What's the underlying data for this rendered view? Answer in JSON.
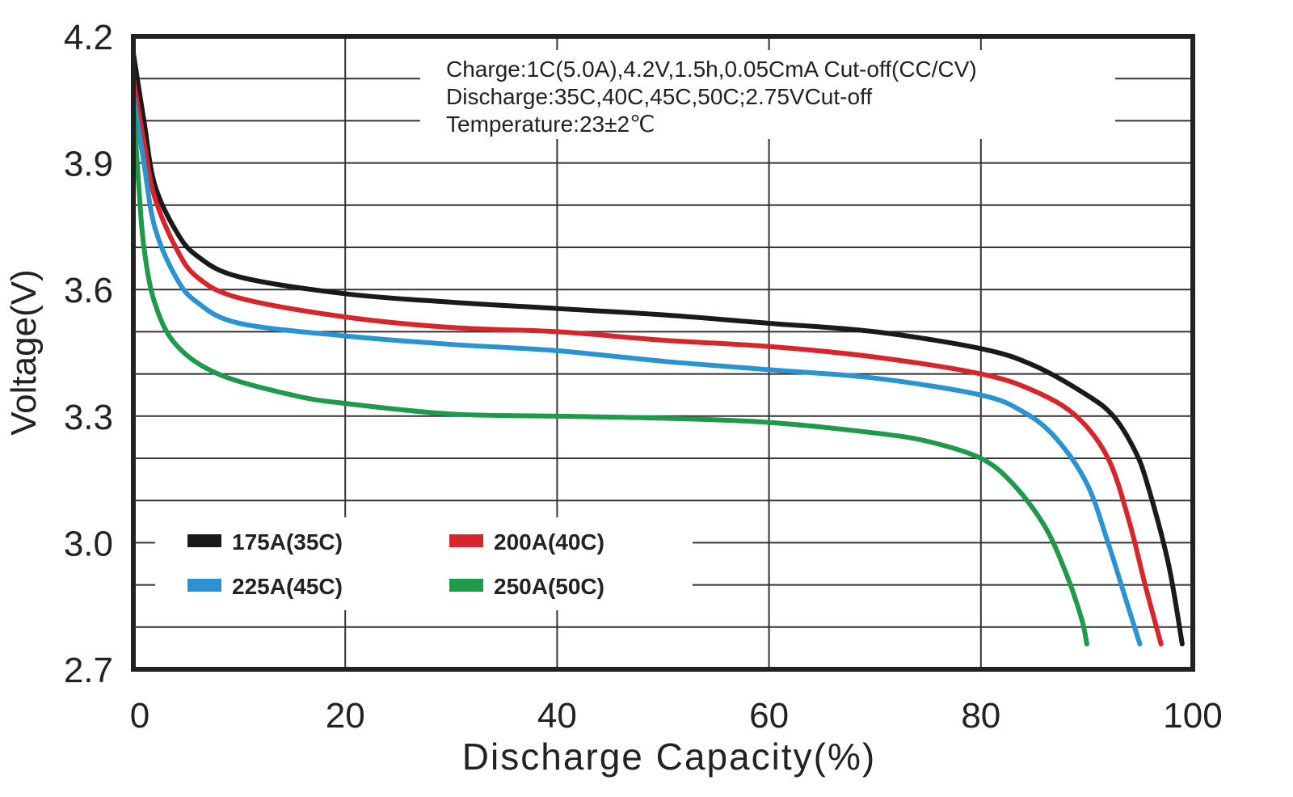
{
  "chart_data": {
    "type": "line",
    "title": "",
    "xlabel": "Discharge Capacity(%)",
    "ylabel": "Voltage(V)",
    "xlim": [
      0,
      100
    ],
    "ylim": [
      2.7,
      4.2
    ],
    "xticks": [
      "0",
      "20",
      "40",
      "60",
      "80",
      "100"
    ],
    "yticks": [
      "4.2",
      "3.9",
      "3.6",
      "3.3",
      "3.0",
      "2.7"
    ],
    "grid": true,
    "legend_placement": "bottom-left",
    "annotations": [
      "Charge:1C(5.0A),4.2V,1.5h,0.05CmA Cut-off(CC/CV)",
      "Discharge:35C,40C,45C,50C;2.75VCut-off",
      "Temperature:23±2℃"
    ],
    "series": [
      {
        "name": "175A(35C)",
        "color": "#1a1a1a",
        "x": [
          0,
          1,
          2,
          4,
          6,
          10,
          20,
          30,
          40,
          50,
          60,
          70,
          80,
          85,
          90,
          92.5,
          94.5,
          95.7,
          97.7,
          99
        ],
        "y": [
          4.16,
          4.0,
          3.85,
          3.74,
          3.68,
          3.63,
          3.59,
          3.57,
          3.555,
          3.54,
          3.52,
          3.5,
          3.46,
          3.42,
          3.35,
          3.3,
          3.22,
          3.14,
          2.95,
          2.76
        ]
      },
      {
        "name": "200A(40C)",
        "color": "#d7262b",
        "x": [
          0,
          1,
          2,
          4,
          6,
          10,
          20,
          30,
          40,
          50,
          60,
          70,
          80,
          85,
          89,
          92,
          94,
          95.5,
          97
        ],
        "y": [
          4.1,
          3.95,
          3.82,
          3.7,
          3.63,
          3.58,
          3.535,
          3.51,
          3.5,
          3.48,
          3.465,
          3.44,
          3.4,
          3.36,
          3.3,
          3.2,
          3.05,
          2.9,
          2.76
        ]
      },
      {
        "name": "225A(45C)",
        "color": "#2b93d1",
        "x": [
          0,
          1,
          2,
          4,
          6,
          10,
          20,
          30,
          40,
          50,
          60,
          70,
          80,
          84,
          87,
          90,
          92,
          93.5,
          95
        ],
        "y": [
          4.06,
          3.9,
          3.75,
          3.63,
          3.57,
          3.52,
          3.49,
          3.47,
          3.455,
          3.43,
          3.41,
          3.39,
          3.35,
          3.31,
          3.25,
          3.14,
          3.0,
          2.88,
          2.76
        ]
      },
      {
        "name": "250A(50C)",
        "color": "#1e9a4a",
        "x": [
          0,
          0.5,
          1,
          2,
          4,
          8,
          15,
          20,
          30,
          40,
          50,
          60,
          70,
          75,
          80,
          83,
          86,
          88,
          89.5,
          90
        ],
        "y": [
          4.04,
          3.85,
          3.7,
          3.57,
          3.47,
          3.4,
          3.35,
          3.33,
          3.305,
          3.3,
          3.295,
          3.285,
          3.26,
          3.24,
          3.2,
          3.14,
          3.04,
          2.93,
          2.82,
          2.76
        ]
      }
    ]
  }
}
